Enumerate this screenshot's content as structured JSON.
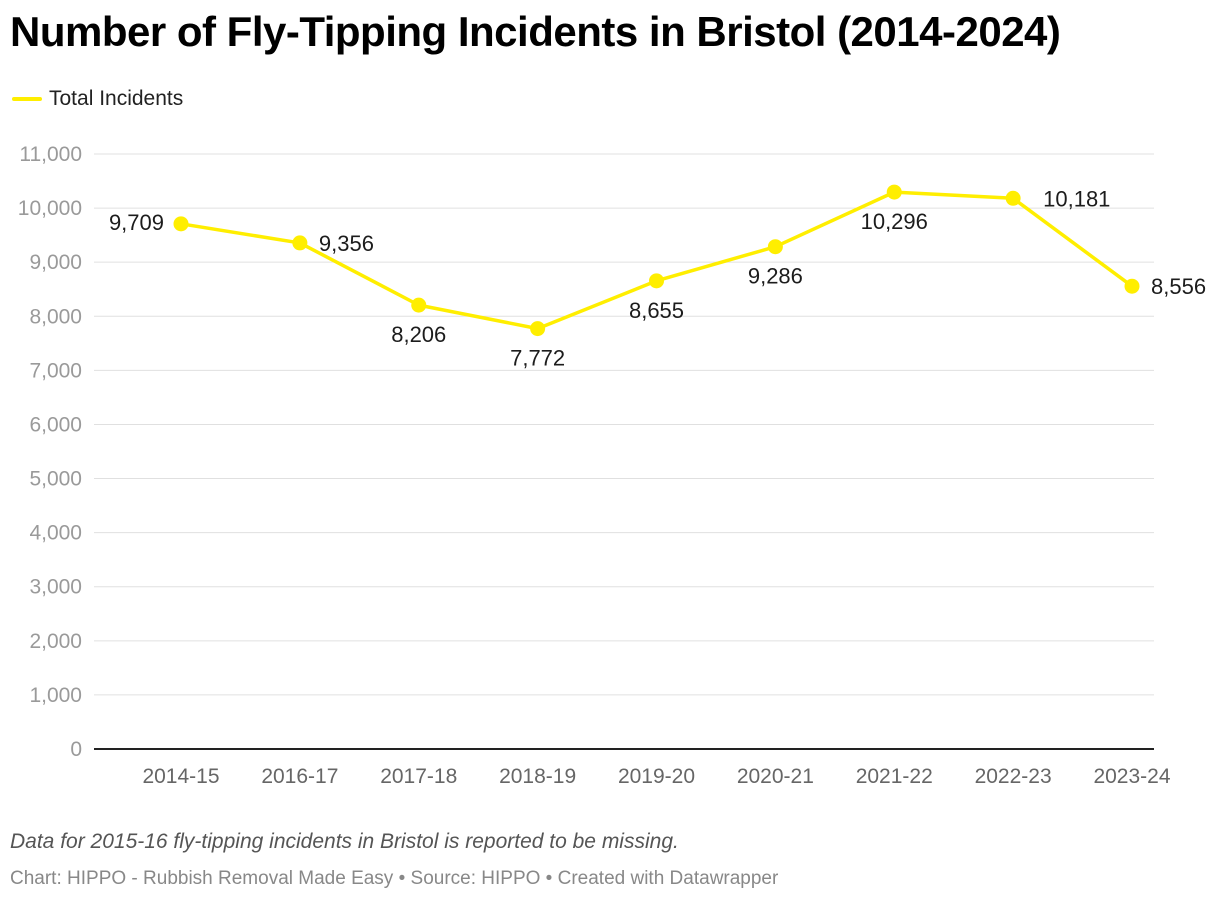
{
  "title": "Number of Fly-Tipping Incidents in Bristol (2014-2024)",
  "note": "Data for 2015-16 fly-tipping incidents in Bristol is reported to be missing.",
  "credits": "Chart: HIPPO - Rubbish Removal Made Easy • Source: HIPPO • Created with Datawrapper",
  "colors": {
    "series": "#ffee00",
    "grid": "#e0e0e0",
    "axis": "#222222"
  },
  "chart_data": {
    "type": "line",
    "title": "Number of Fly-Tipping Incidents in Bristol (2014-2024)",
    "xlabel": "",
    "ylabel": "",
    "categories": [
      "2014-15",
      "2016-17",
      "2017-18",
      "2018-19",
      "2019-20",
      "2020-21",
      "2021-22",
      "2022-23",
      "2023-24"
    ],
    "series": [
      {
        "name": "Total Incidents",
        "values": [
          9709,
          9356,
          8206,
          7772,
          8655,
          9286,
          10296,
          10181,
          8556
        ]
      }
    ],
    "data_labels": [
      "9,709",
      "9,356",
      "8,206",
      "7,772",
      "8,655",
      "9,286",
      "10,296",
      "10,181",
      "8,556"
    ],
    "y_ticks": [
      0,
      1000,
      2000,
      3000,
      4000,
      5000,
      6000,
      7000,
      8000,
      9000,
      10000,
      11000
    ],
    "y_tick_labels": [
      "0",
      "1,000",
      "2,000",
      "3,000",
      "4,000",
      "5,000",
      "6,000",
      "7,000",
      "8,000",
      "9,000",
      "10,000",
      "11,000"
    ],
    "ylim": [
      0,
      11000
    ],
    "grid": true,
    "legend": "top-left"
  }
}
